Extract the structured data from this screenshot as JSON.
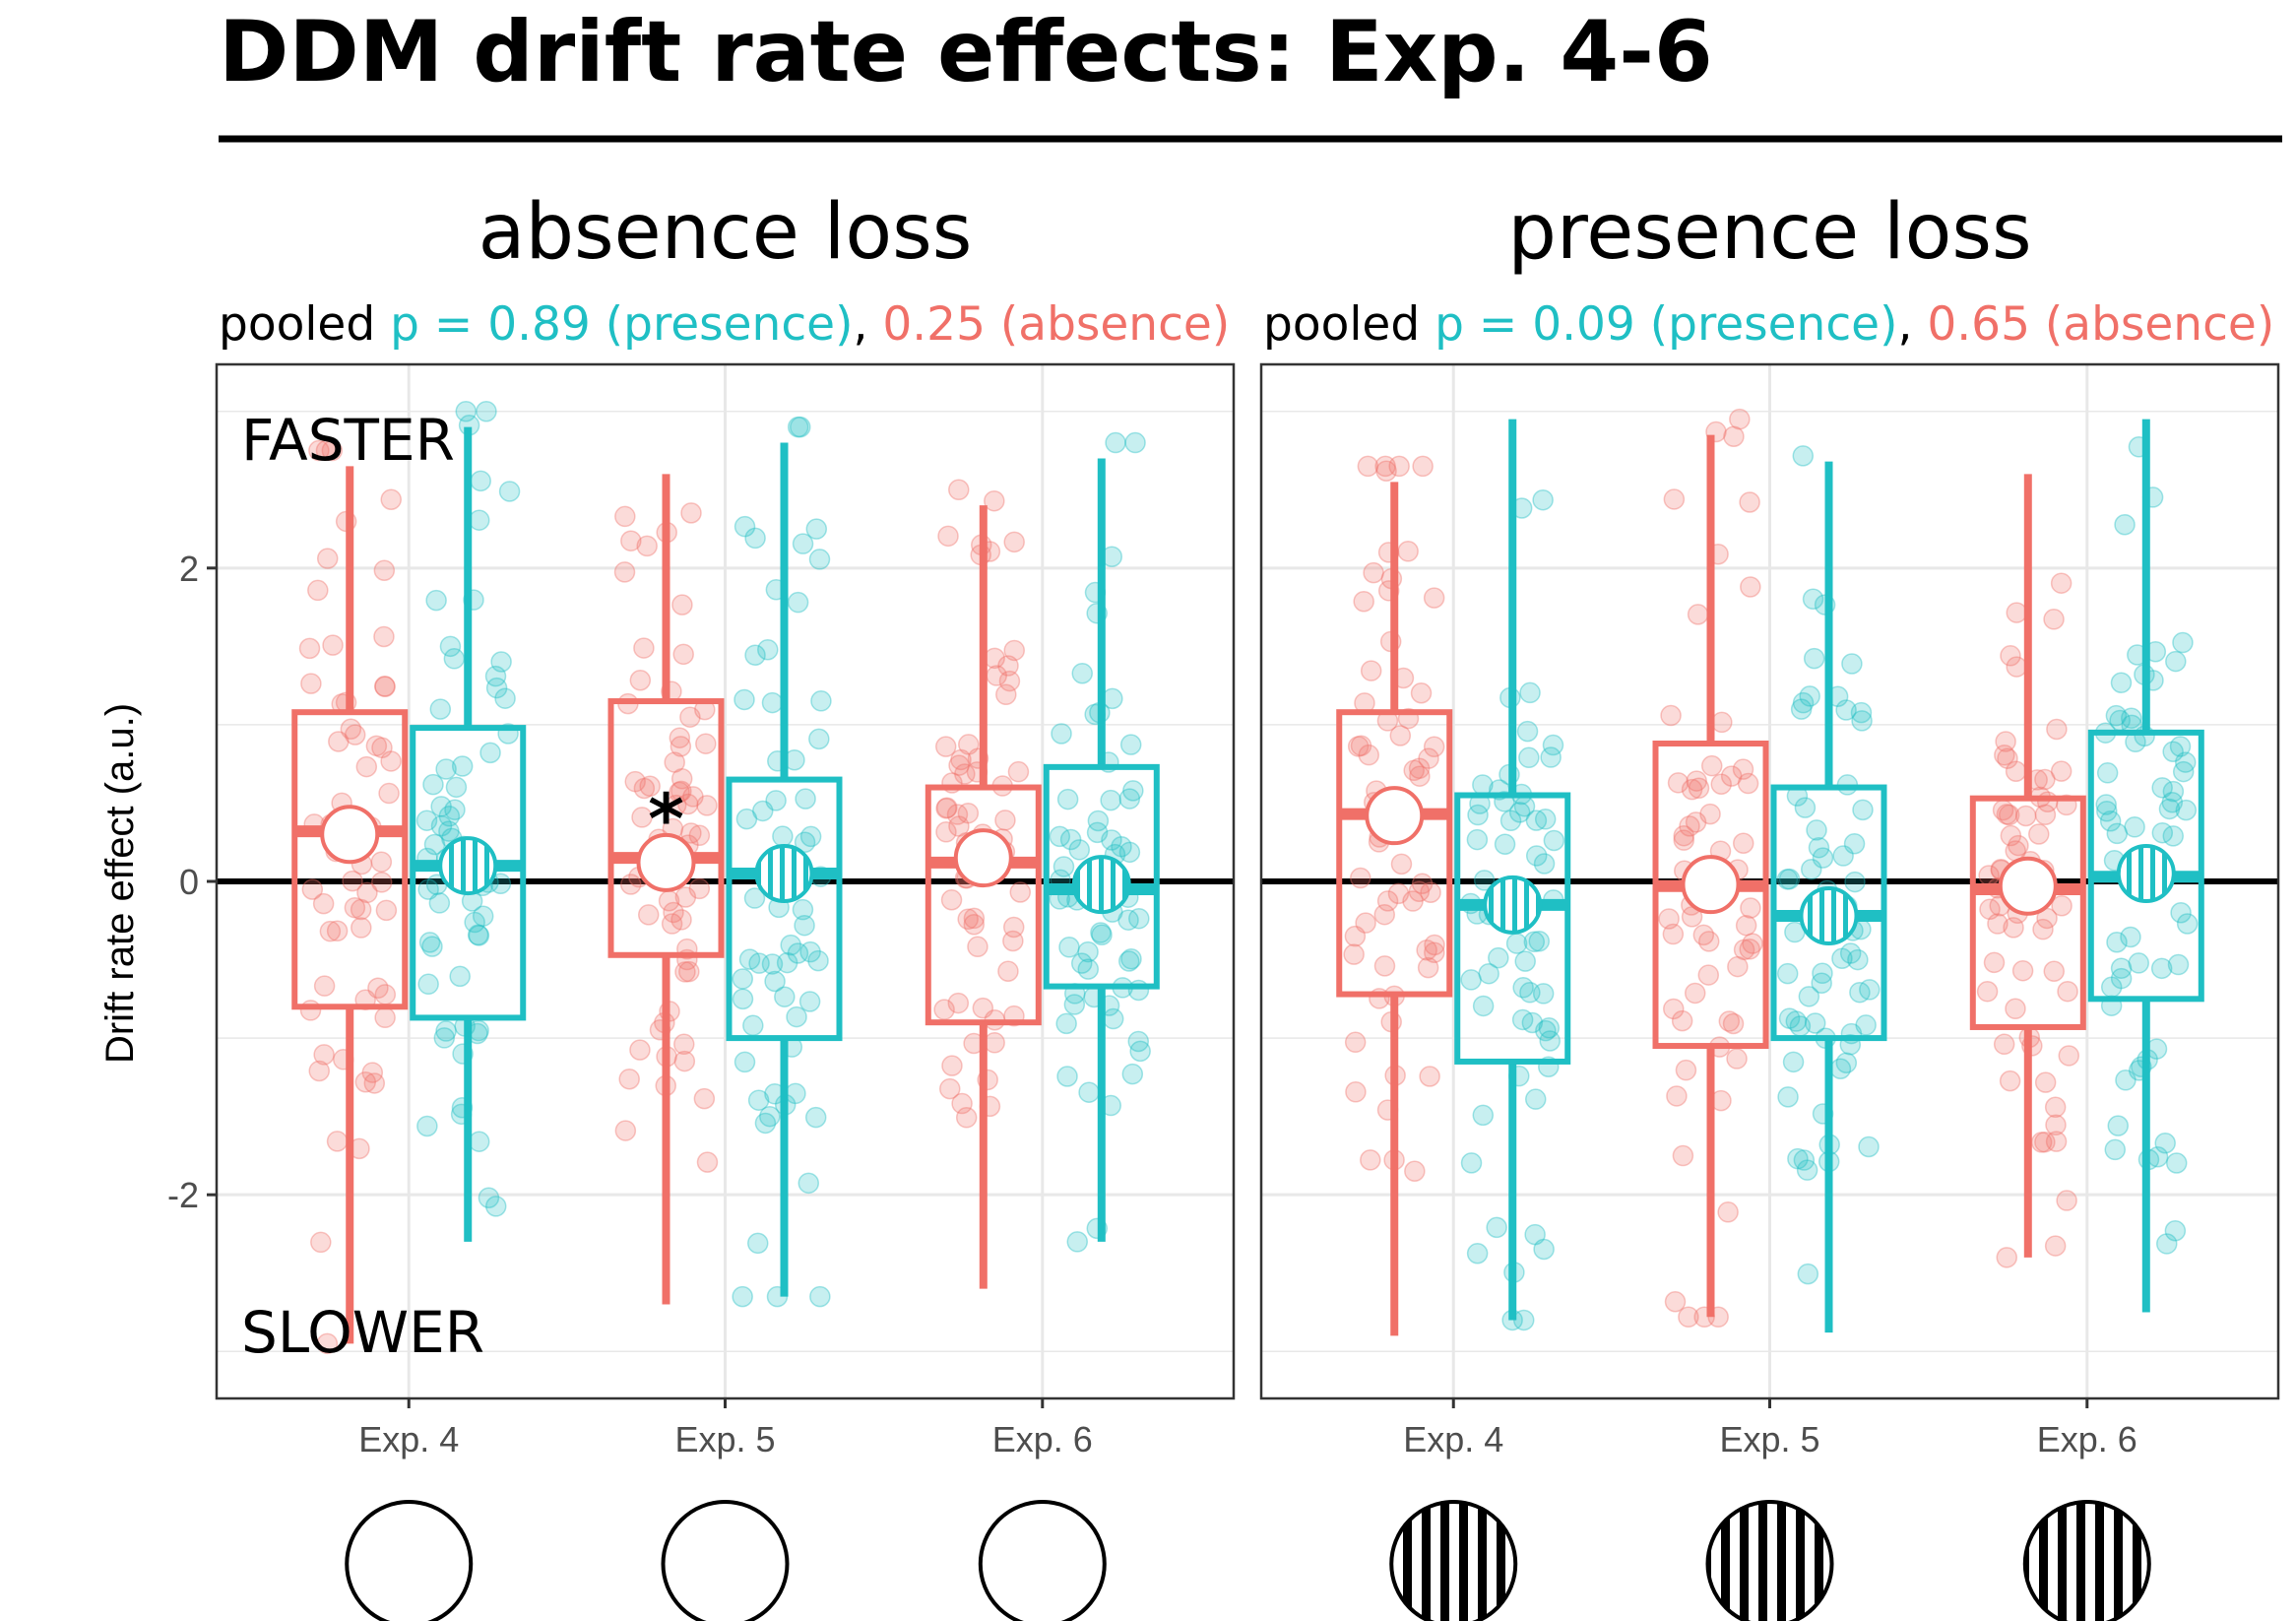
{
  "title": "DDM drift rate effects: Exp. 4-6",
  "colors": {
    "presence": "#1fbfc4",
    "absence": "#f07068",
    "grid": "#e8e8e8",
    "text": "#000000"
  },
  "chart_data": {
    "type": "box",
    "ylabel": "Drift rate effect (a.u.)",
    "ylim": [
      -3.3,
      3.3
    ],
    "yticks": [
      -2,
      0,
      2
    ],
    "ytick_labels": [
      "-2",
      "0",
      "2"
    ],
    "categories": [
      "Exp. 4",
      "Exp. 5",
      "Exp. 6"
    ],
    "annotations": {
      "faster": "FASTER",
      "slower": "SLOWER",
      "significance": "*"
    },
    "panels": [
      {
        "title": "absence loss",
        "subtitle": {
          "prefix": "pooled ",
          "presence": "p = 0.89 (presence)",
          "sep": ", ",
          "absence": "0.25 (absence)"
        },
        "legend_icon": "plain-circle",
        "series": [
          {
            "name": "absence",
            "boxes": [
              {
                "category": "Exp. 4",
                "q1": -0.8,
                "median": 0.32,
                "q3": 1.08,
                "whisker_low": -2.95,
                "whisker_high": 2.65,
                "mean": 0.3
              },
              {
                "category": "Exp. 5",
                "q1": -0.47,
                "median": 0.15,
                "q3": 1.15,
                "whisker_low": -2.7,
                "whisker_high": 2.6,
                "mean": 0.12,
                "significant": true
              },
              {
                "category": "Exp. 6",
                "q1": -0.9,
                "median": 0.12,
                "q3": 0.6,
                "whisker_low": -2.6,
                "whisker_high": 2.4,
                "mean": 0.15
              }
            ]
          },
          {
            "name": "presence",
            "boxes": [
              {
                "category": "Exp. 4",
                "q1": -0.87,
                "median": 0.1,
                "q3": 0.98,
                "whisker_low": -2.3,
                "whisker_high": 2.9,
                "mean": 0.1
              },
              {
                "category": "Exp. 5",
                "q1": -1.0,
                "median": 0.05,
                "q3": 0.65,
                "whisker_low": -2.65,
                "whisker_high": 2.8,
                "mean": 0.05
              },
              {
                "category": "Exp. 6",
                "q1": -0.67,
                "median": -0.05,
                "q3": 0.73,
                "whisker_low": -2.3,
                "whisker_high": 2.7,
                "mean": -0.02
              }
            ]
          }
        ]
      },
      {
        "title": "presence loss",
        "subtitle": {
          "prefix": "pooled ",
          "presence": "p = 0.09 (presence)",
          "sep": ", ",
          "absence": "0.65 (absence)"
        },
        "legend_icon": "striped-circle",
        "series": [
          {
            "name": "absence",
            "boxes": [
              {
                "category": "Exp. 4",
                "q1": -0.72,
                "median": 0.43,
                "q3": 1.08,
                "whisker_low": -2.9,
                "whisker_high": 2.55,
                "mean": 0.42
              },
              {
                "category": "Exp. 5",
                "q1": -1.05,
                "median": -0.03,
                "q3": 0.88,
                "whisker_low": -2.78,
                "whisker_high": 2.85,
                "mean": -0.02
              },
              {
                "category": "Exp. 6",
                "q1": -0.93,
                "median": -0.05,
                "q3": 0.53,
                "whisker_low": -2.4,
                "whisker_high": 2.6,
                "mean": -0.03
              }
            ]
          },
          {
            "name": "presence",
            "boxes": [
              {
                "category": "Exp. 4",
                "q1": -1.15,
                "median": -0.15,
                "q3": 0.55,
                "whisker_low": -2.8,
                "whisker_high": 2.95,
                "mean": -0.15
              },
              {
                "category": "Exp. 5",
                "q1": -1.0,
                "median": -0.22,
                "q3": 0.6,
                "whisker_low": -2.88,
                "whisker_high": 2.68,
                "mean": -0.22
              },
              {
                "category": "Exp. 6",
                "q1": -0.75,
                "median": 0.03,
                "q3": 0.95,
                "whisker_low": -2.75,
                "whisker_high": 2.95,
                "mean": 0.05
              }
            ]
          }
        ]
      }
    ]
  }
}
